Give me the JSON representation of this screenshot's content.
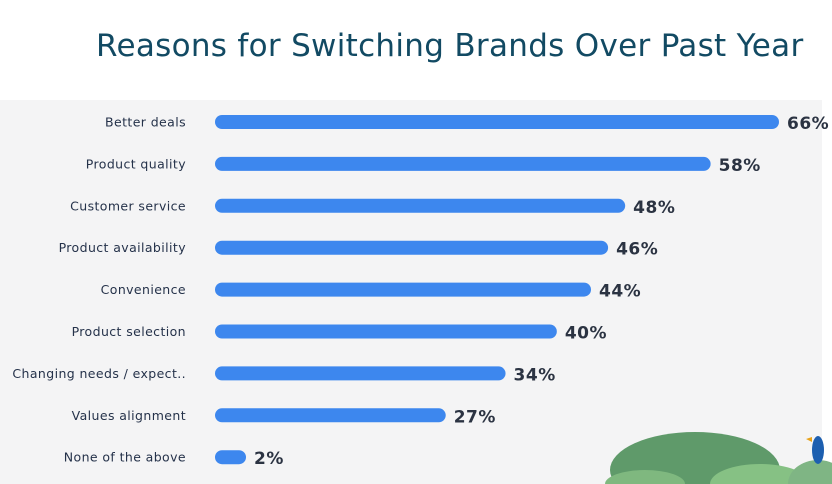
{
  "chart_data": {
    "type": "bar",
    "orientation": "horizontal",
    "title": "Reasons for Switching Brands Over Past Year",
    "categories": [
      "Better deals",
      "Product quality",
      "Customer service",
      "Product availability",
      "Convenience",
      "Product selection",
      "Changing needs / expect..",
      "Values alignment",
      "None of the above"
    ],
    "values": [
      66,
      58,
      48,
      46,
      44,
      40,
      34,
      27,
      2
    ],
    "value_suffix": "%",
    "data_labels": [
      "66%",
      "58%",
      "48%",
      "46%",
      "44%",
      "40%",
      "34%",
      "27%",
      "2%"
    ],
    "xlim": [
      0,
      66
    ],
    "grid": false,
    "colors": {
      "bar": "#3d87ee",
      "title": "#124a63",
      "label": "#25324a",
      "value": "#2b3342",
      "panel": "#f4f4f5"
    }
  }
}
